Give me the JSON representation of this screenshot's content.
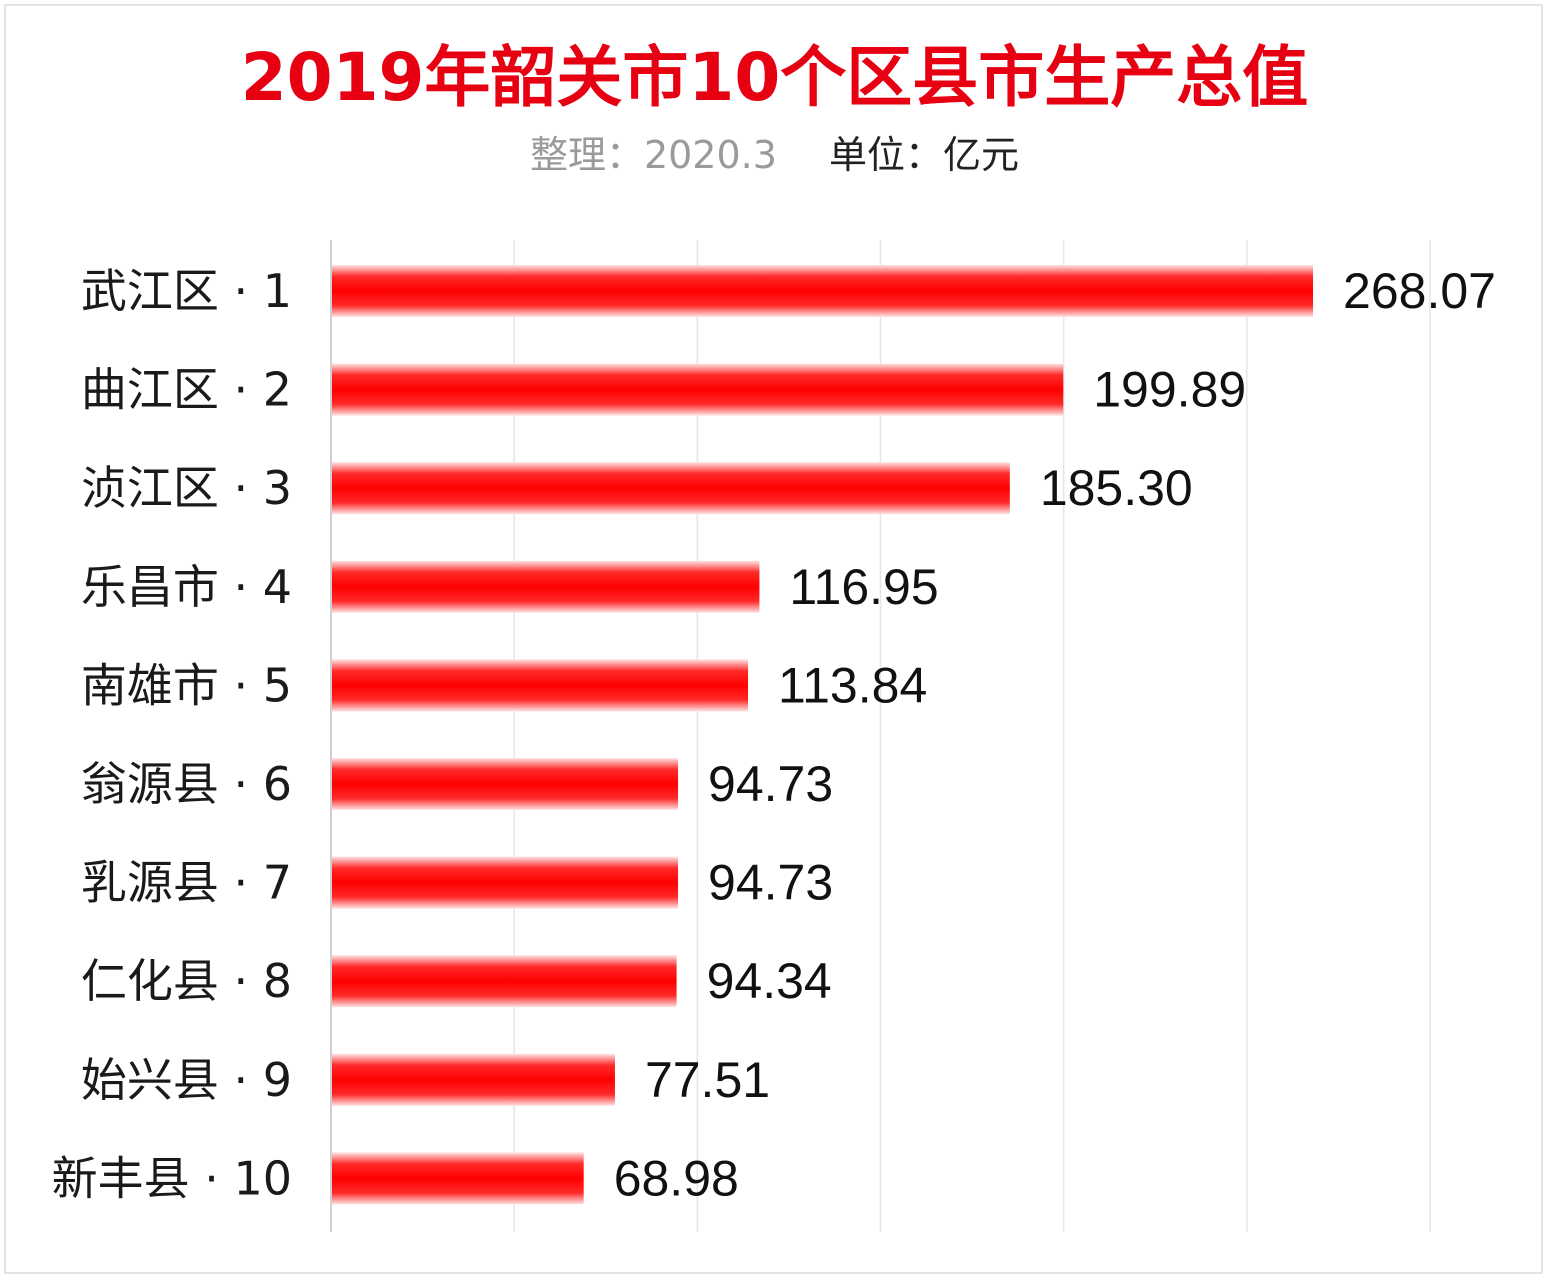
{
  "title": "2019年韶关市10个区县市生产总值",
  "subtitle": {
    "compiled": "整理：2020.3",
    "unit": "单位：亿元"
  },
  "colors": {
    "title": "#e60012",
    "bar": "#ff0000",
    "bar_edge": "#ffd6d6",
    "grid": "#e6e6e6"
  },
  "chart_data": {
    "type": "bar",
    "orientation": "horizontal",
    "categories": [
      "武江区 · 1",
      "曲江区 · 2",
      "浈江区 · 3",
      "乐昌市 · 4",
      "南雄市 · 5",
      "翁源县 · 6",
      "乳源县 · 7",
      "仁化县 · 8",
      "始兴县 · 9",
      "新丰县 · 10"
    ],
    "values": [
      268.07,
      199.89,
      185.3,
      116.95,
      113.84,
      94.73,
      94.73,
      94.34,
      77.51,
      68.98
    ],
    "value_labels": [
      "268.07",
      "199.89",
      "185.30",
      "116.95",
      "113.84",
      "94.73",
      "94.73",
      "94.34",
      "77.51",
      "68.98"
    ],
    "xlim": [
      0,
      300
    ],
    "grid": true,
    "legend": "none"
  }
}
